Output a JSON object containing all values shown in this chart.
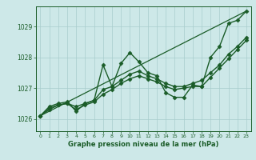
{
  "title": "Graphe pression niveau de la mer (hPa)",
  "bg_color": "#cde8e8",
  "plot_bg_color": "#cde8e8",
  "grid_color": "#a8cccc",
  "line_color": "#1a5c28",
  "xlim": [
    -0.5,
    23.5
  ],
  "ylim": [
    1025.6,
    1029.65
  ],
  "yticks": [
    1026,
    1027,
    1028,
    1029
  ],
  "xticks": [
    0,
    1,
    2,
    3,
    4,
    5,
    6,
    7,
    8,
    9,
    10,
    11,
    12,
    13,
    14,
    15,
    16,
    17,
    18,
    19,
    20,
    21,
    22,
    23
  ],
  "series": [
    {
      "x": [
        0,
        1,
        2,
        3,
        4,
        5,
        6,
        7,
        8,
        9,
        10,
        11,
        12,
        13,
        14,
        15,
        16,
        17,
        18,
        19,
        20,
        21,
        22,
        23
      ],
      "y": [
        1026.1,
        1026.4,
        1026.5,
        1026.55,
        1026.25,
        1026.5,
        1026.6,
        1027.75,
        1027.05,
        1027.8,
        1028.15,
        1027.85,
        1027.5,
        1027.4,
        1026.85,
        1026.7,
        1026.7,
        1027.1,
        1027.05,
        1028.0,
        1028.35,
        1029.1,
        1029.2,
        1029.5
      ],
      "marker": "D",
      "markersize": 2.5,
      "linewidth": 1.0
    },
    {
      "x": [
        0,
        1,
        2,
        3,
        4,
        5,
        6,
        7,
        8,
        9,
        10,
        11,
        12,
        13,
        14,
        15,
        16,
        17,
        18,
        19,
        20,
        21,
        22,
        23
      ],
      "y": [
        1026.1,
        1026.35,
        1026.45,
        1026.5,
        1026.4,
        1026.5,
        1026.6,
        1026.95,
        1027.05,
        1027.25,
        1027.45,
        1027.55,
        1027.4,
        1027.3,
        1027.15,
        1027.05,
        1027.05,
        1027.15,
        1027.25,
        1027.5,
        1027.75,
        1028.1,
        1028.35,
        1028.65
      ],
      "marker": "D",
      "markersize": 2.5,
      "linewidth": 1.0
    },
    {
      "x": [
        0,
        1,
        2,
        3,
        4,
        5,
        6,
        7,
        8,
        9,
        10,
        11,
        12,
        13,
        14,
        15,
        16,
        17,
        18,
        19,
        20,
        21,
        22,
        23
      ],
      "y": [
        1026.1,
        1026.3,
        1026.45,
        1026.5,
        1026.3,
        1026.45,
        1026.55,
        1026.8,
        1026.95,
        1027.15,
        1027.3,
        1027.4,
        1027.3,
        1027.2,
        1027.05,
        1026.95,
        1027.0,
        1027.05,
        1027.05,
        1027.35,
        1027.65,
        1027.95,
        1028.25,
        1028.55
      ],
      "marker": "D",
      "markersize": 2.5,
      "linewidth": 1.0
    },
    {
      "x": [
        0,
        23
      ],
      "y": [
        1026.1,
        1029.5
      ],
      "marker": null,
      "markersize": 0,
      "linewidth": 0.9
    }
  ],
  "ylabel_fontsize": 5.5,
  "xlabel_fontsize": 6.0,
  "xtick_fontsize": 4.5,
  "ytick_fontsize": 5.5
}
